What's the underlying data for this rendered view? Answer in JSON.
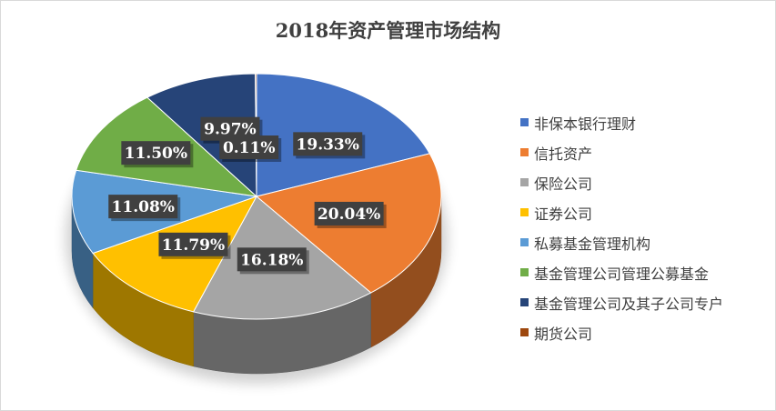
{
  "chart_data": {
    "type": "pie",
    "title": "2018年资产管理市场结构",
    "legend_position": "right",
    "categories": [
      "非保本银行理财",
      "信托资产",
      "保险公司",
      "证券公司",
      "私募基金管理机构",
      "基金管理公司管理公募基金",
      "基金管理公司及其子公司专户",
      "期货公司"
    ],
    "values": [
      19.33,
      20.04,
      16.18,
      11.79,
      11.08,
      11.5,
      9.97,
      0.11
    ],
    "data_labels": [
      "19.33%",
      "20.04%",
      "16.18%",
      "11.79%",
      "11.08%",
      "11.50%",
      "9.97%",
      "0.11%"
    ],
    "colors": [
      "#4472C4",
      "#ED7D31",
      "#A5A5A5",
      "#FFC000",
      "#5B9BD5",
      "#70AD47",
      "#264478",
      "#9E480E"
    ]
  }
}
